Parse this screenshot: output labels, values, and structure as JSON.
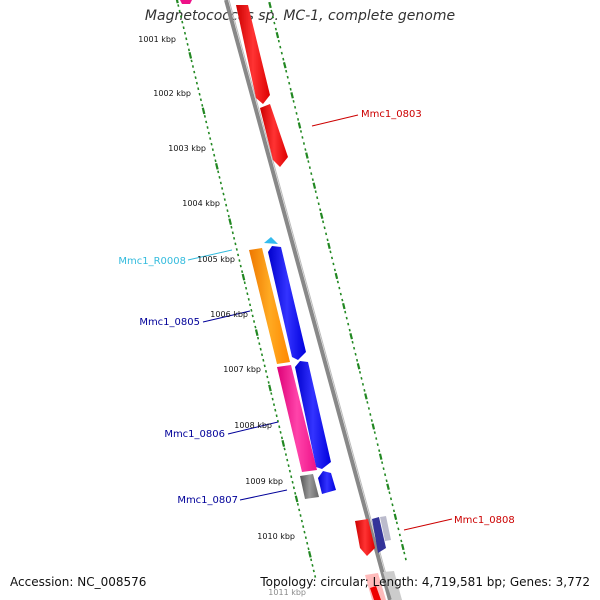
{
  "title": "Magnetococcus sp. MC-1, complete genome",
  "footer": {
    "accession": "Accession: NC_008576",
    "topology": "Topology: circular; Length: 4,719,581 bp; Genes: 3,772"
  },
  "ruler": [
    {
      "label": "1001 kbp"
    },
    {
      "label": "1002 kbp"
    },
    {
      "label": "1003 kbp"
    },
    {
      "label": "1004 kbp"
    },
    {
      "label": "1005 kbp"
    },
    {
      "label": "1006 kbp"
    },
    {
      "label": "1007 kbp"
    },
    {
      "label": "1008 kbp"
    },
    {
      "label": "1009 kbp"
    },
    {
      "label": "1010 kbp"
    },
    {
      "label": "1011 kbp"
    }
  ],
  "labels": [
    {
      "text": "Mmc1_0803",
      "color": "#cc0000"
    },
    {
      "text": "Mmc1_R0008",
      "color": "#33bbdd"
    },
    {
      "text": "Mmc1_0805",
      "color": "#000099"
    },
    {
      "text": "Mmc1_0806",
      "color": "#000099"
    },
    {
      "text": "Mmc1_0807",
      "color": "#000099"
    },
    {
      "text": "Mmc1_0808",
      "color": "#cc0000"
    }
  ],
  "colors": {
    "ruler": "#228822",
    "backbone": "#888888",
    "gene_red": "#ee0000",
    "gene_blue": "#0000ee",
    "gene_orange": "#ff8800",
    "gene_magenta": "#ee1188",
    "gene_gray": "#666666",
    "gene_cyan": "#33bbee"
  }
}
